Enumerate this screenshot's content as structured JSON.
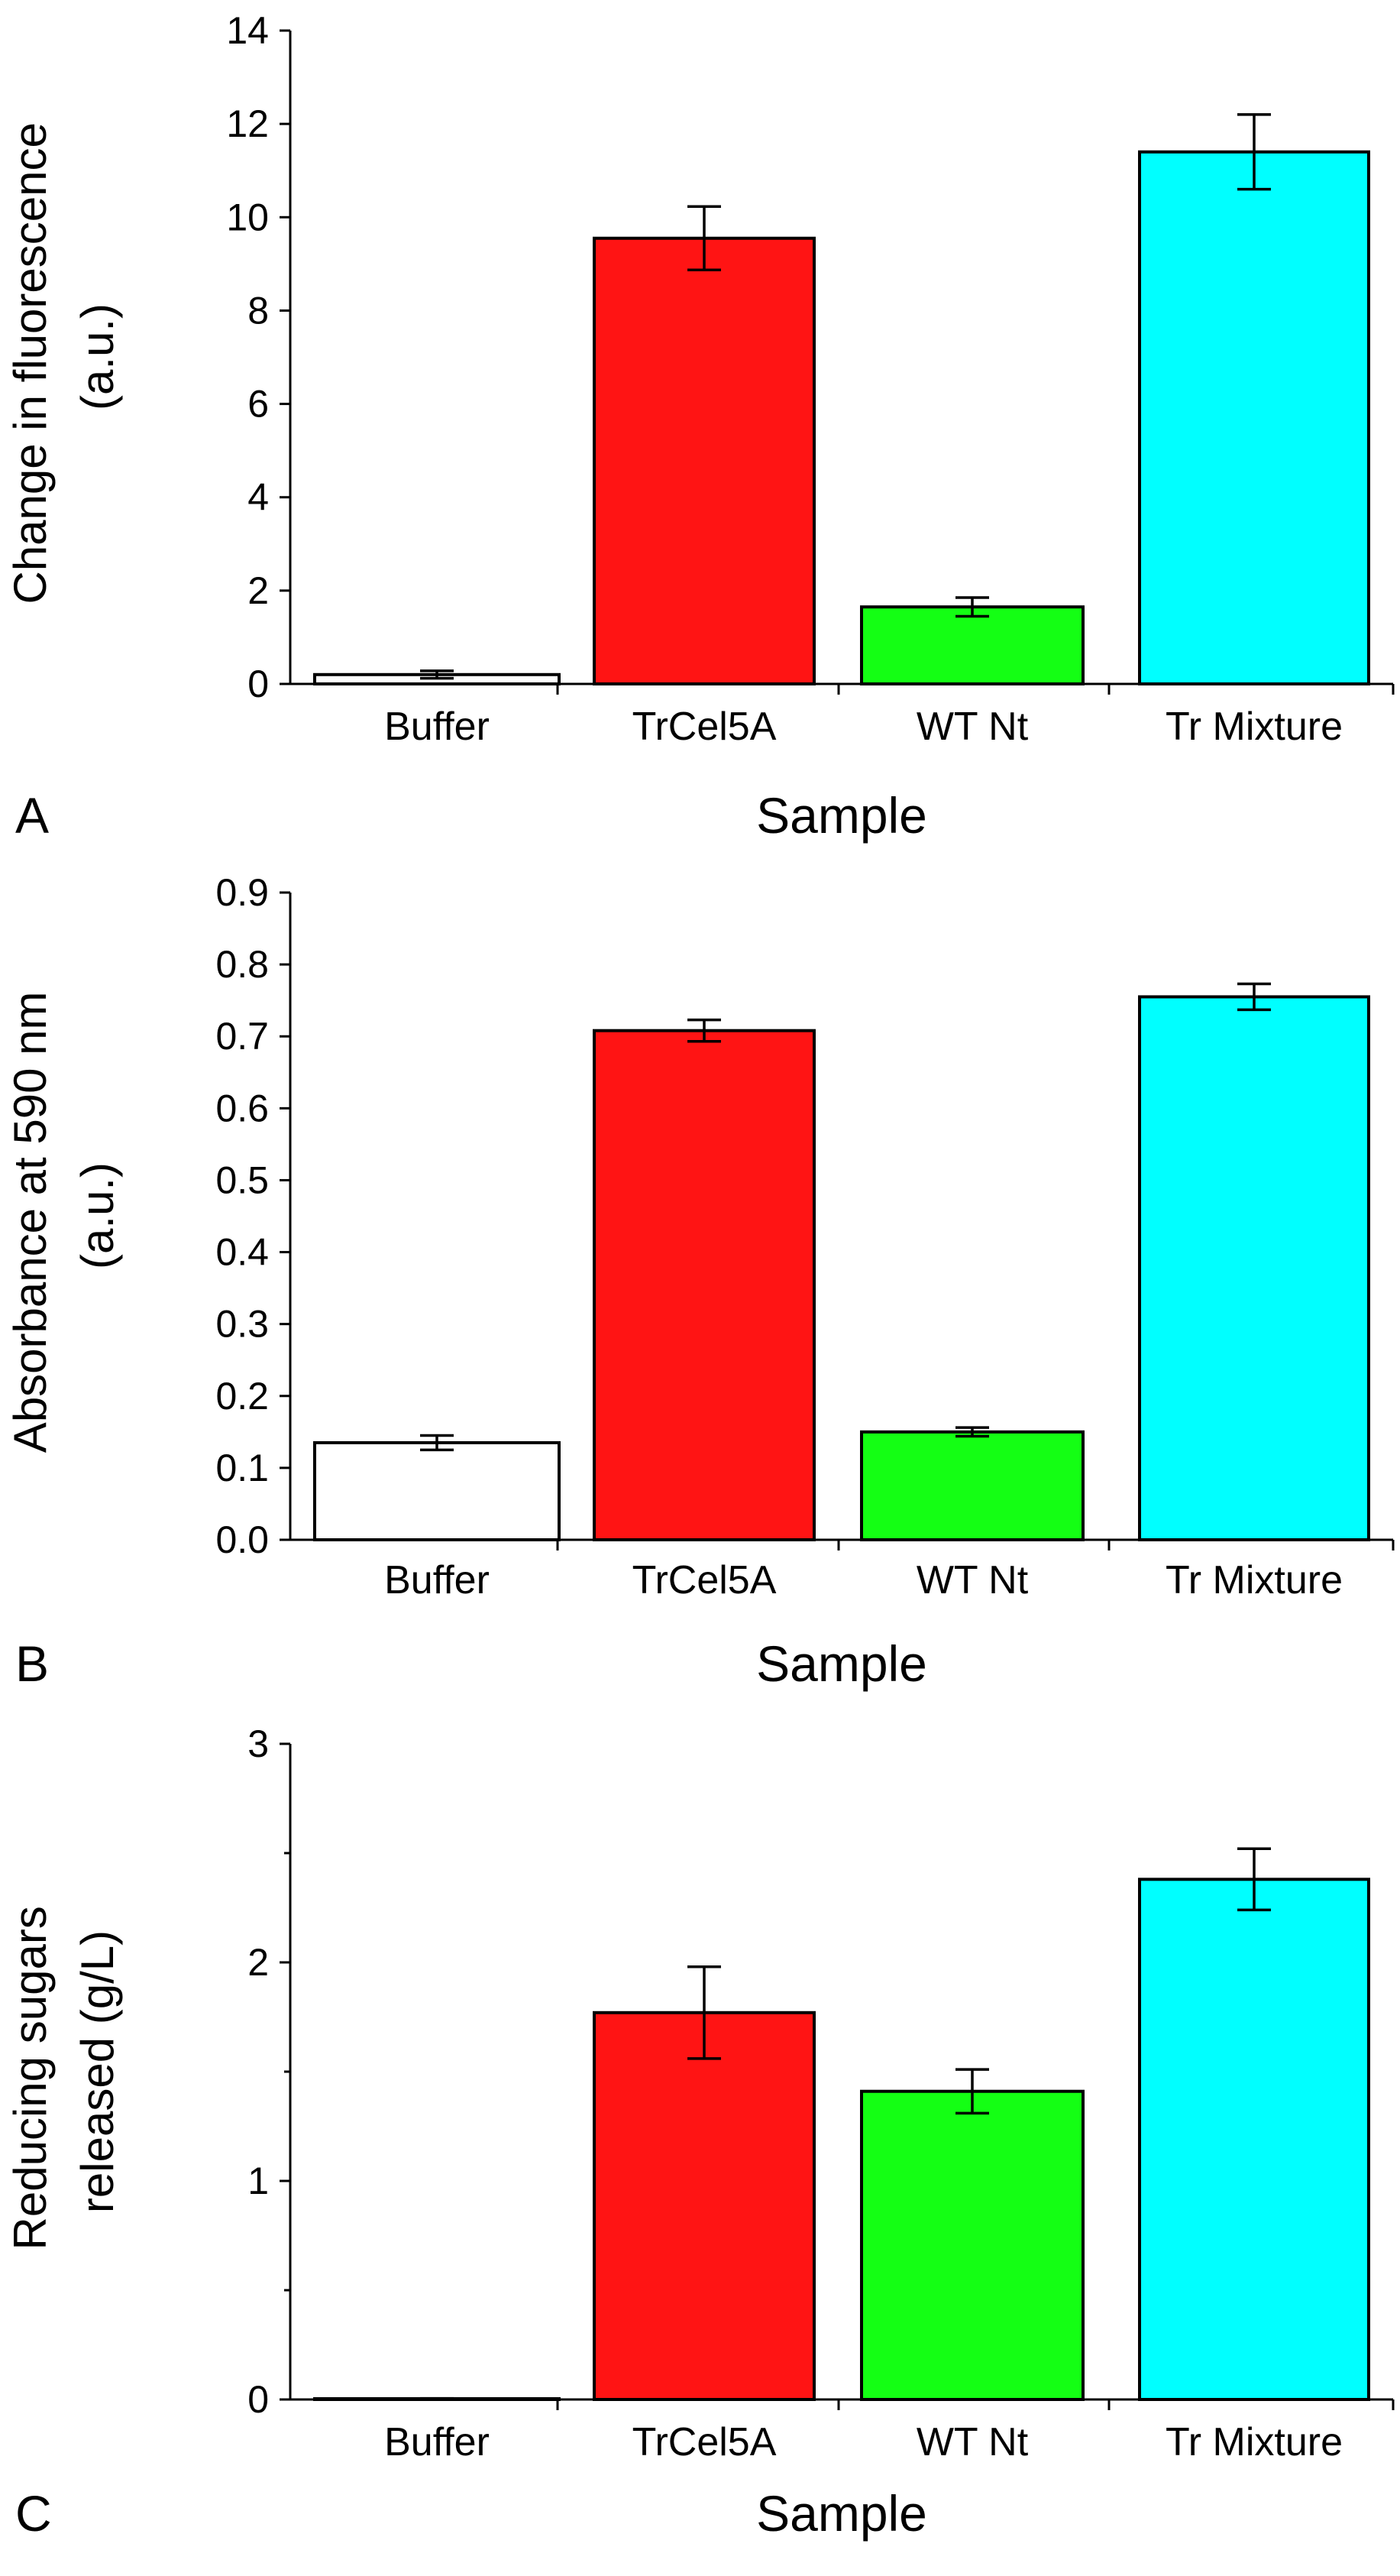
{
  "chart_data": [
    {
      "panel": "A",
      "type": "bar",
      "categories": [
        "Buffer",
        "TrCel5A",
        "WT Nt",
        "Tr Mixture"
      ],
      "values": [
        0.2,
        9.55,
        1.65,
        11.4
      ],
      "errors": [
        0.08,
        0.68,
        0.2,
        0.8
      ],
      "colors": [
        "#ffffff",
        "#ff1414",
        "#14ff14",
        "#00ffff"
      ],
      "xlabel": "Sample",
      "ylabel_lines": [
        "Change in fluorescence",
        "(a.u.)"
      ],
      "ylim": [
        0,
        14
      ],
      "yticks": [
        0,
        2,
        4,
        6,
        8,
        10,
        12,
        14
      ],
      "ytick_labels": [
        "0",
        "2",
        "4",
        "6",
        "8",
        "10",
        "12",
        "14"
      ],
      "minor_ticks": []
    },
    {
      "panel": "B",
      "type": "bar",
      "categories": [
        "Buffer",
        "TrCel5A",
        "WT Nt",
        "Tr Mixture"
      ],
      "values": [
        0.135,
        0.708,
        0.15,
        0.755
      ],
      "errors": [
        0.01,
        0.015,
        0.006,
        0.018
      ],
      "colors": [
        "#ffffff",
        "#ff1414",
        "#14ff14",
        "#00ffff"
      ],
      "xlabel": "Sample",
      "ylabel_lines": [
        "Absorbance at 590 nm",
        "(a.u.)"
      ],
      "ylim": [
        0,
        0.9
      ],
      "yticks": [
        0,
        0.1,
        0.2,
        0.3,
        0.4,
        0.5,
        0.6,
        0.7,
        0.8,
        0.9
      ],
      "ytick_labels": [
        "0.0",
        "0.1",
        "0.2",
        "0.3",
        "0.4",
        "0.5",
        "0.6",
        "0.7",
        "0.8",
        "0.9"
      ],
      "minor_ticks": []
    },
    {
      "panel": "C",
      "type": "bar",
      "categories": [
        "Buffer",
        "TrCel5A",
        "WT Nt",
        "Tr Mixture"
      ],
      "values": [
        0.0,
        1.77,
        1.41,
        2.38
      ],
      "errors": [
        0.005,
        0.21,
        0.1,
        0.14
      ],
      "colors": [
        "#ffffff",
        "#ff1414",
        "#14ff14",
        "#00ffff"
      ],
      "xlabel": "Sample",
      "ylabel_lines": [
        "Reducing sugars",
        "released (g/L)"
      ],
      "ylim": [
        0,
        3
      ],
      "yticks": [
        0,
        1,
        2,
        3
      ],
      "ytick_labels": [
        "0",
        "1",
        "2",
        "3"
      ],
      "minor_ticks": [
        0.5,
        1.5,
        2.5
      ]
    }
  ]
}
